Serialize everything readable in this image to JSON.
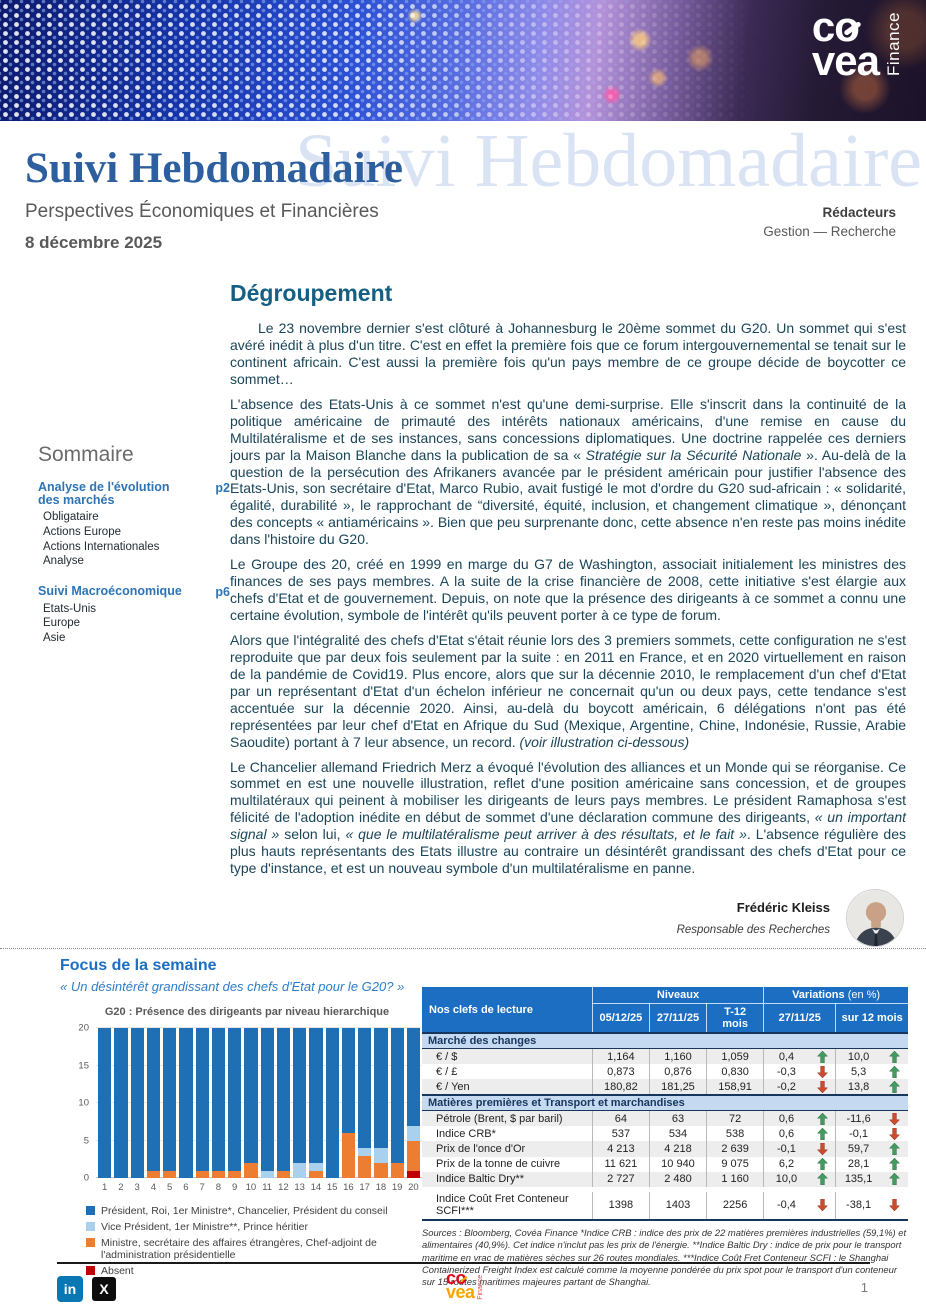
{
  "header": {
    "brand_top": "co",
    "brand_bottom": "vea",
    "brand_vertical": "Finance",
    "title": "Suivi Hebdomadaire",
    "watermark": "Suivi Hebdomadaire",
    "subtitle": "Perspectives Économiques et Financières",
    "date": "8 décembre 2025",
    "editors_label": "Rédacteurs",
    "editors_value": "Gestion — Recherche"
  },
  "sommaire": {
    "title": "Sommaire",
    "sections": [
      {
        "label": "Analyse de l'évolution des marchés",
        "page": "p2",
        "items": [
          "Obligataire",
          "Actions Europe",
          "Actions Internationales",
          "Analyse"
        ]
      },
      {
        "label": "Suivi Macroéconomique",
        "page": "p6",
        "items": [
          "Etats-Unis",
          "Europe",
          "Asie"
        ]
      }
    ]
  },
  "article": {
    "title": "Dégroupement",
    "paragraphs": [
      {
        "indent": true,
        "runs": [
          {
            "text": "Le 23 novembre dernier s'est clôturé à Johannesburg le 20ème sommet du G20. Un sommet qui s'est avéré inédit à plus d'un titre. C'est en effet la première fois que ce forum intergouvernemental se tenait sur le continent africain. C'est aussi la première fois qu'un pays membre de ce groupe décide de boycotter ce sommet…"
          }
        ]
      },
      {
        "indent": false,
        "runs": [
          {
            "text": "L'absence des Etats-Unis à ce sommet n'est qu'une demi-surprise. Elle s'inscrit dans la continuité de la politique américaine de primauté des intérêts nationaux américains, d'une remise en cause du Multilatéralisme et de ses instances, sans concessions diplomatiques. Une doctrine rappelée ces derniers jours par la Maison Blanche dans la publication de sa « "
          },
          {
            "text": "Stratégie sur la Sécurité Nationale",
            "italic": true
          },
          {
            "text": " ». Au-delà de la question de la persécution des Afrikaners avancée par le président américain pour justifier l'absence des Etats-Unis, son secrétaire d'Etat, Marco Rubio, avait fustigé le mot d'ordre du G20 sud-africain : « solidarité, égalité, durabilité », le rapprochant de “diversité, équité, inclusion, et changement climatique », dénonçant des concepts « antiaméricains ». Bien que peu surprenante donc, cette absence n'en reste pas moins inédite dans l'histoire du G20."
          }
        ]
      },
      {
        "indent": false,
        "runs": [
          {
            "text": "Le Groupe des 20, créé en 1999 en marge du G7 de Washington, associait initialement les ministres des finances de ses pays membres. A la suite de la crise financière de 2008, cette initiative s'est élargie aux chefs d'Etat et de gouvernement. Depuis, on note que la présence des dirigeants à ce sommet a connu une certaine évolution, symbole de l'intérêt qu'ils peuvent porter à ce type de forum."
          }
        ]
      },
      {
        "indent": false,
        "runs": [
          {
            "text": "Alors que l'intégralité des chefs d'Etat s'était réunie lors des 3 premiers sommets, cette configuration ne s'est reproduite que par deux fois seulement par la suite : en 2011 en France, et en 2020 virtuellement en raison de la pandémie de Covid19. Plus encore, alors que sur la décennie 2010, le remplacement d'un chef d'Etat par un représentant d'Etat d'un échelon inférieur ne concernait qu'un ou deux pays, cette tendance s'est accentuée sur la décennie 2020. Ainsi, au-delà du boycott américain, 6 délégations n'ont pas été représentées par leur chef d'Etat en Afrique du Sud (Mexique, Argentine, Chine, Indonésie, Russie, Arabie Saoudite) portant à 7 leur absence, un record. "
          },
          {
            "text": "(voir illustration ci-dessous)",
            "italic": true
          }
        ]
      },
      {
        "indent": false,
        "runs": [
          {
            "text": "Le Chancelier allemand Friedrich Merz a évoqué l'évolution des alliances et un Monde qui se réorganise. Ce sommet en est une nouvelle illustration, reflet d'une position américaine sans concession, et de groupes multilatéraux qui peinent à mobiliser les dirigeants de leurs pays membres. Le président Ramaphosa s'est félicité de l'adoption inédite en début de sommet d'une déclaration commune des dirigeants, "
          },
          {
            "text": "« un important signal »",
            "italic": true
          },
          {
            "text": " selon lui, "
          },
          {
            "text": "« que le multilatéralisme peut arriver à des résultats, et le fait »",
            "italic": true
          },
          {
            "text": ". L'absence régulière des plus hauts représentants des Etats illustre au contraire un désintérêt grandissant des chefs d'Etat pour ce type d'instance, et est un nouveau symbole d'un multilatéralisme en panne."
          }
        ]
      }
    ],
    "author": {
      "name": "Frédéric Kleiss",
      "role": "Responsable des Recherches"
    }
  },
  "focus": {
    "title": "Focus de la semaine",
    "subtitle": "« Un désintérêt grandissant des chefs d'Etat pour le G20? »"
  },
  "chart_data": {
    "type": "bar",
    "stacked": true,
    "title": "G20 : Présence des dirigeants par niveau hierarchique",
    "categories": [
      "1",
      "2",
      "3",
      "4",
      "5",
      "6",
      "7",
      "8",
      "9",
      "10",
      "11",
      "12",
      "13",
      "14",
      "15",
      "16",
      "17",
      "18",
      "19",
      "20"
    ],
    "ylim": [
      0,
      20
    ],
    "yticks": [
      0,
      5,
      10,
      15,
      20
    ],
    "legend_position": "bottom",
    "series": [
      {
        "name": "Président, Roi, 1er Ministre*, Chancelier, Président du conseil",
        "color": "#1f6fb5",
        "values": [
          20,
          20,
          20,
          19,
          19,
          20,
          19,
          19,
          19,
          18,
          19,
          19,
          18,
          18,
          20,
          14,
          16,
          16,
          18,
          13
        ]
      },
      {
        "name": "Vice Président, 1er Ministre**, Prince héritier",
        "color": "#a9d1ee",
        "values": [
          0,
          0,
          0,
          0,
          0,
          0,
          0,
          0,
          0,
          0,
          1,
          0,
          2,
          1,
          0,
          0,
          1,
          2,
          0,
          2
        ]
      },
      {
        "name": "Ministre, secrétaire des affaires étrangères, Chef-adjoint de l'administration présidentielle",
        "color": "#ed7d31",
        "values": [
          0,
          0,
          0,
          1,
          1,
          0,
          1,
          1,
          1,
          2,
          0,
          1,
          0,
          1,
          0,
          6,
          3,
          2,
          2,
          4
        ]
      },
      {
        "name": "Absent",
        "color": "#c00000",
        "values": [
          0,
          0,
          0,
          0,
          0,
          0,
          0,
          0,
          0,
          0,
          0,
          0,
          0,
          0,
          0,
          0,
          0,
          0,
          0,
          1
        ]
      }
    ]
  },
  "table": {
    "title_col": "Nos clefs de lecture",
    "group_levels": "Niveaux",
    "group_var_bold": "Variations",
    "group_var_normal": " (en %)",
    "col_headers": [
      "05/12/25",
      "27/11/25",
      "T-12 mois",
      "27/11/25",
      "sur 12 mois"
    ],
    "sections": [
      {
        "name": "Marché des changes",
        "rows": [
          {
            "label": "€ / $",
            "levels": [
              "1,164",
              "1,160",
              "1,059"
            ],
            "var1": "0,4",
            "dir1": "up",
            "var2": "10,0",
            "dir2": "up"
          },
          {
            "label": "€ / £",
            "levels": [
              "0,873",
              "0,876",
              "0,830"
            ],
            "var1": "-0,3",
            "dir1": "down",
            "var2": "5,3",
            "dir2": "up"
          },
          {
            "label": "€ / Yen",
            "levels": [
              "180,82",
              "181,25",
              "158,91"
            ],
            "var1": "-0,2",
            "dir1": "down",
            "var2": "13,8",
            "dir2": "up"
          }
        ]
      },
      {
        "name": "Matières premières et Transport et marchandises",
        "rows": [
          {
            "label": "Pétrole (Brent, $ par baril)",
            "levels": [
              "64",
              "63",
              "72"
            ],
            "var1": "0,6",
            "dir1": "up",
            "var2": "-11,6",
            "dir2": "down"
          },
          {
            "label": "Indice CRB*",
            "levels": [
              "537",
              "534",
              "538"
            ],
            "var1": "0,6",
            "dir1": "up",
            "var2": "-0,1",
            "dir2": "down"
          },
          {
            "label": "Prix de l'once d'Or",
            "levels": [
              "4 213",
              "4 218",
              "2 639"
            ],
            "var1": "-0,1",
            "dir1": "down",
            "var2": "59,7",
            "dir2": "up"
          },
          {
            "label": "Prix de la tonne de cuivre",
            "levels": [
              "11 621",
              "10 940",
              "9 075"
            ],
            "var1": "6,2",
            "dir1": "up",
            "var2": "28,1",
            "dir2": "up"
          },
          {
            "label": "Indice Baltic Dry**",
            "levels": [
              "2 727",
              "2 480",
              "1 160"
            ],
            "var1": "10,0",
            "dir1": "up",
            "var2": "135,1",
            "dir2": "up"
          },
          {
            "label": "Indice Coût Fret Conteneur SCFI***",
            "levels": [
              "1398",
              "1403",
              "2256"
            ],
            "var1": "-0,4",
            "dir1": "down",
            "var2": "-38,1",
            "dir2": "down",
            "spaced": true
          }
        ]
      }
    ],
    "sources": "Sources : Bloomberg, Covéa Finance  *Indice CRB : indice  des prix de 22 matières premières industrielles (59,1%) et alimentaires (40,9%). Cet indice n'inclut pas les prix de l'énergie. **Indice Baltic Dry : indice de prix pour le transport maritime en vrac de matières sèches sur 26 routes mondiales. ***Indice Coût Fret Conteneur SCFI : le Shanghai Containerized Freight Index est calculé comme la moyenne pondérée du prix spot pour le transport d'un conteneur sur 15 routes maritimes majeures partant de Shanghai."
  },
  "footer": {
    "linkedin_label": "in",
    "x_label": "X",
    "brand_top": "co",
    "brand_bottom": "vea",
    "brand_vertical": "Finance",
    "page_number": "1"
  }
}
